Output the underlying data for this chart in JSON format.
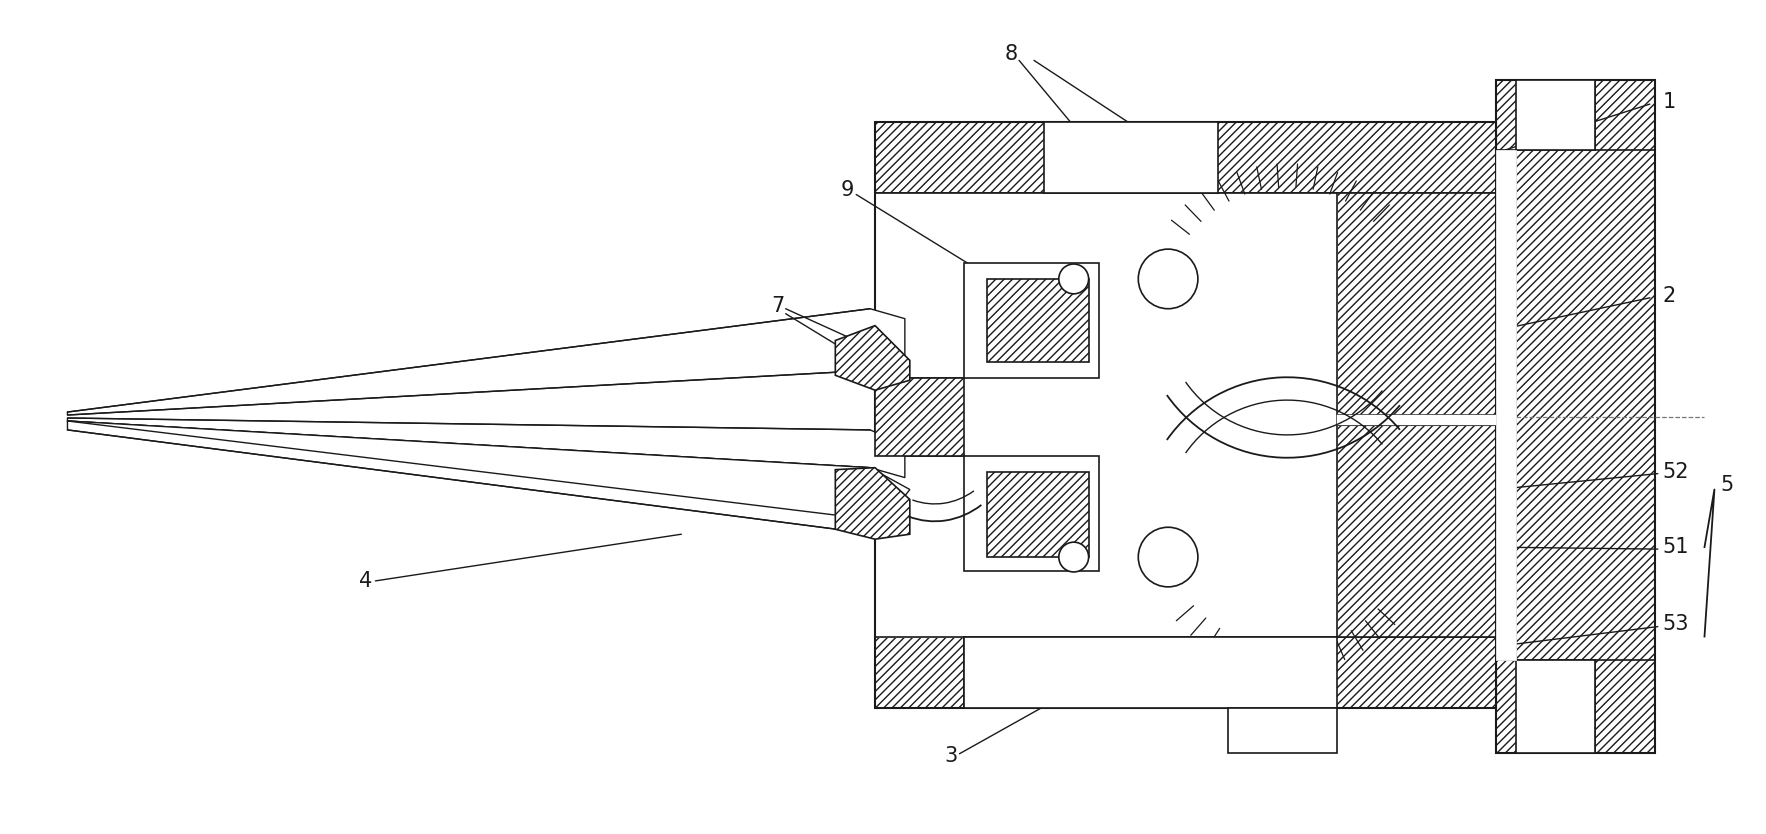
{
  "figure_size": [
    17.66,
    8.34
  ],
  "dpi": 100,
  "bg_color": "#ffffff",
  "line_color": "#1a1a1a",
  "line_width": 1.2
}
